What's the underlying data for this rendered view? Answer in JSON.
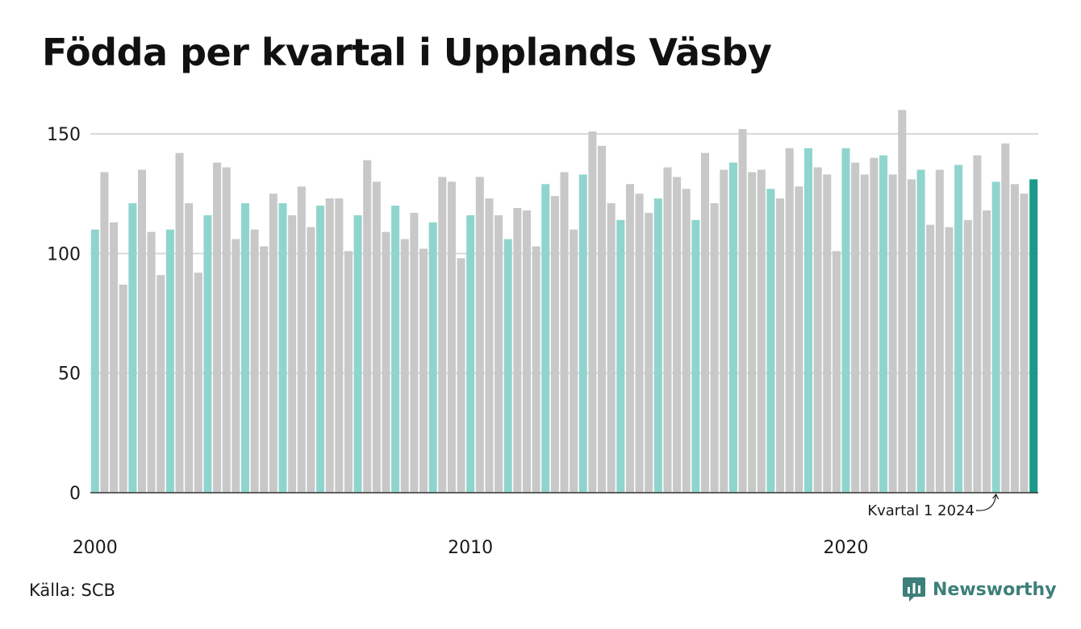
{
  "title": "Födda per kvartal i Upplands Väsby",
  "source": "Källa: SCB",
  "brand": "Newsworthy",
  "icons": {
    "brand_logo": "newsworthy-logo-icon"
  },
  "colors": {
    "q1": "#8fd5cd",
    "other": "#c8c8c8",
    "latest": "#1a9a8a",
    "grid": "#d9d9d9",
    "axis": "#333333",
    "brand": "#3d7f79"
  },
  "chart_data": {
    "type": "bar",
    "xlabel": "",
    "ylabel": "",
    "ylim": [
      0,
      150
    ],
    "yticks": [
      0,
      50,
      100,
      150
    ],
    "xticks": [
      "2000",
      "2010",
      "2020"
    ],
    "start": "2000 Q1",
    "end": "2024 Q1",
    "annotation": "Kvartal 1 2024",
    "grid": true,
    "values": [
      110,
      134,
      113,
      87,
      121,
      135,
      109,
      91,
      110,
      142,
      121,
      92,
      116,
      138,
      136,
      106,
      121,
      110,
      103,
      125,
      121,
      116,
      128,
      111,
      120,
      123,
      123,
      101,
      116,
      139,
      130,
      109,
      120,
      106,
      117,
      102,
      113,
      132,
      130,
      98,
      116,
      132,
      123,
      116,
      106,
      119,
      118,
      103,
      129,
      124,
      134,
      110,
      133,
      151,
      145,
      121,
      114,
      129,
      125,
      117,
      123,
      136,
      132,
      127,
      114,
      142,
      121,
      135,
      138,
      152,
      134,
      135,
      127,
      123,
      144,
      128,
      144,
      136,
      133,
      101,
      144,
      138,
      133,
      140,
      141,
      133,
      160,
      131,
      135,
      112,
      135,
      111,
      137,
      114,
      141,
      118,
      130,
      146,
      129,
      125,
      131
    ]
  }
}
